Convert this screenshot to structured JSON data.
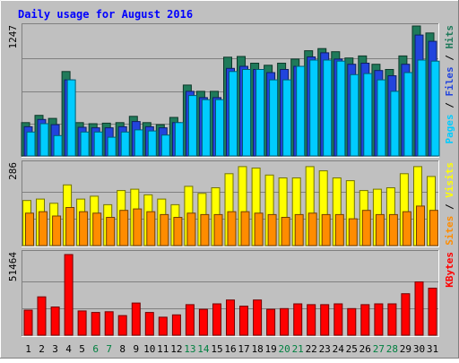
{
  "chart_data": {
    "type": "bar",
    "title": "Daily usage for August 2016",
    "categories": [
      "1",
      "2",
      "3",
      "4",
      "5",
      "6",
      "7",
      "8",
      "9",
      "10",
      "11",
      "12",
      "13",
      "14",
      "15",
      "16",
      "17",
      "18",
      "19",
      "20",
      "21",
      "22",
      "23",
      "24",
      "25",
      "26",
      "27",
      "28",
      "29",
      "30",
      "31"
    ],
    "weekend_days": [
      "6",
      "7",
      "13",
      "14",
      "20",
      "21",
      "27",
      "28"
    ],
    "panels": [
      {
        "id": "hits-pages-files",
        "max_label": "1247",
        "ylim": [
          0,
          1247
        ],
        "axis_labels": [
          "Pages",
          "Files",
          "Hits"
        ],
        "series": [
          {
            "name": "Hits",
            "color": "#1f7a5a",
            "values": [
              320,
              390,
              360,
              810,
              320,
              310,
              315,
              320,
              380,
              320,
              300,
              370,
              680,
              620,
              620,
              948,
              955,
              890,
              870,
              890,
              930,
              1010,
              1030,
              1000,
              940,
              960,
              880,
              830,
              960,
              1247,
              1180
            ]
          },
          {
            "name": "Files",
            "color": "#2244dd",
            "values": [
              280,
              350,
              300,
              730,
              275,
              270,
              270,
              280,
              330,
              280,
              270,
              320,
              620,
              560,
              560,
              840,
              860,
              830,
              800,
              830,
              860,
              950,
              990,
              930,
              880,
              890,
              820,
              770,
              880,
              1160,
              1100
            ]
          },
          {
            "name": "Pages",
            "color": "#00ccff",
            "values": [
              230,
              310,
              195,
              730,
              230,
              230,
              180,
              230,
              250,
              240,
              200,
              320,
              580,
              540,
              540,
              810,
              830,
              830,
              730,
              730,
              860,
              920,
              920,
              910,
              780,
              790,
              730,
              620,
              800,
              920,
              910
            ]
          }
        ]
      },
      {
        "id": "visits-sites",
        "max_label": "286",
        "ylim": [
          0,
          286
        ],
        "axis_labels": [
          "Sites",
          "Visits"
        ],
        "series": [
          {
            "name": "Visits",
            "color": "#ffff00",
            "values": [
              160,
              165,
              150,
              215,
              165,
              175,
              145,
              195,
              200,
              180,
              165,
              145,
              210,
              185,
              205,
              255,
              280,
              275,
              250,
              240,
              240,
              280,
              265,
              240,
              230,
              195,
              200,
              205,
              255,
              280,
              245
            ]
          },
          {
            "name": "Sites",
            "color": "#ff8c00",
            "values": [
              115,
              120,
              105,
              135,
              120,
              115,
              100,
              125,
              130,
              120,
              110,
              100,
              115,
              110,
              110,
              120,
              120,
              115,
              110,
              100,
              110,
              115,
              110,
              110,
              95,
              125,
              110,
              110,
              120,
              140,
              125
            ]
          }
        ]
      },
      {
        "id": "kbytes",
        "max_label": "51464",
        "ylim": [
          0,
          51464
        ],
        "axis_labels": [
          "KBytes"
        ],
        "series": [
          {
            "name": "KBytes",
            "color": "#ff0000",
            "values": [
              16000,
              24500,
              18000,
              51464,
              15500,
              14500,
              15000,
              12500,
              20500,
              14500,
              11500,
              13000,
              19500,
              16500,
              20000,
              22500,
              18500,
              22500,
              16500,
              17000,
              20000,
              19500,
              19500,
              20000,
              17000,
              19500,
              20000,
              20000,
              26500,
              34000,
              30000
            ]
          }
        ]
      }
    ]
  }
}
